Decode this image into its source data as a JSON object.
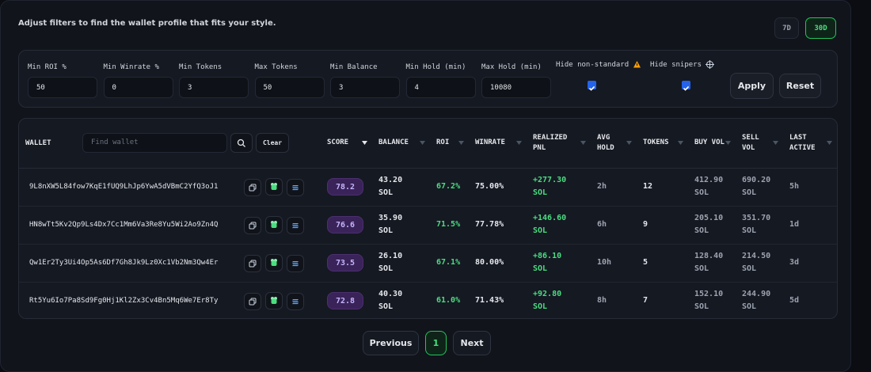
{
  "header": {
    "subtitle": "Adjust filters to find the wallet profile that fits your style.",
    "periods": [
      {
        "label": "7D",
        "active": false
      },
      {
        "label": "30D",
        "active": true
      }
    ]
  },
  "filters": [
    {
      "label": "Min ROI %",
      "value": 50
    },
    {
      "label": "Min Winrate %",
      "value": 0
    },
    {
      "label": "Min Tokens",
      "value": 3
    },
    {
      "label": "Max Tokens",
      "value": 50
    },
    {
      "label": "Min Balance",
      "value": 3
    },
    {
      "label": "Min Hold (min)",
      "value": 4
    },
    {
      "label": "Max Hold (min)",
      "value": 10080
    }
  ],
  "toggles": [
    {
      "label": "Hide non-standard",
      "checked": true
    },
    {
      "label": "Hide snipers",
      "checked": true
    }
  ],
  "buttons": {
    "apply": "Apply",
    "reset": "Reset"
  },
  "table": {
    "wallet_header": "WALLET",
    "search_placeholder": "Find wallet",
    "clear": "Clear",
    "columns": [
      "SCORE",
      "BALANCE",
      "ROI",
      "WINRATE",
      "REALIZED PNL",
      "AVG HOLD",
      "TOKENS",
      "BUY VOL",
      "SELL VOL",
      "LAST ACTIVE"
    ],
    "sorted_column": 0,
    "rows": [
      [
        "9L8nXW5L84fow7KqE1fUQ9LhJp6YwA5dVBmC2YfQ3oJ1",
        "78.2",
        "43.20 SOL",
        "67.2%",
        "75.00%",
        "+277.30 SOL",
        "2h",
        "12",
        "412.90 SOL",
        "690.20 SOL",
        "5h"
      ],
      [
        "HN8wTt5Kv2Qp9Ls4Dx7Cc1Mm6Va3Re8Yu5Wi2Ao9Zn4Q",
        "76.6",
        "35.90 SOL",
        "71.5%",
        "77.78%",
        "+146.60 SOL",
        "6h",
        "9",
        "205.10 SOL",
        "351.70 SOL",
        "1d"
      ],
      [
        "Qw1Er2Ty3Ui4Op5As6Df7Gh8Jk9Lz0Xc1Vb2Nm3Qw4Er",
        "73.5",
        "26.10 SOL",
        "67.1%",
        "80.00%",
        "+86.10 SOL",
        "10h",
        "5",
        "128.40 SOL",
        "214.50 SOL",
        "3d"
      ],
      [
        "Rt5Yu6Io7Pa8Sd9Fg0Hj1Kl2Zx3Cv4Bn5Mq6We7Er8Ty",
        "72.8",
        "40.30 SOL",
        "61.0%",
        "71.43%",
        "+92.80 SOL",
        "8h",
        "7",
        "152.10 SOL",
        "244.90 SOL",
        "5d"
      ]
    ]
  },
  "pagination": {
    "previous": "Previous",
    "page": "1",
    "next": "Next"
  }
}
